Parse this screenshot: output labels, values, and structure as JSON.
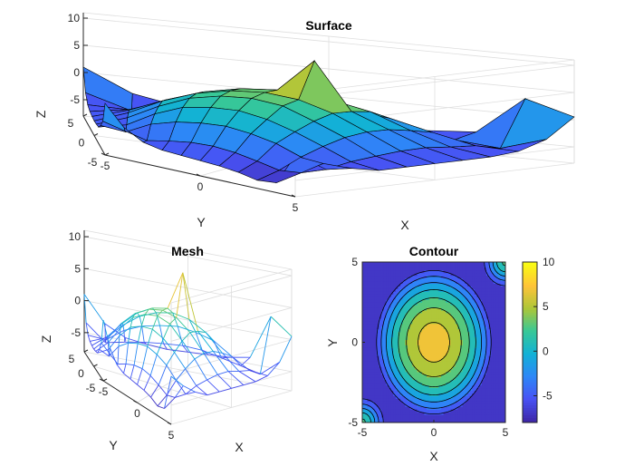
{
  "chart_data": [
    {
      "type": "surface",
      "title": "Surface",
      "xlabel": "X",
      "ylabel": "Y",
      "zlabel": "Z",
      "xlim": [
        -5,
        5
      ],
      "ylim": [
        -5,
        5
      ],
      "zlim": [
        -8,
        11
      ],
      "xticks": [
        "-5",
        "0",
        "5"
      ],
      "yticks": [
        "-5",
        "0",
        "5"
      ],
      "zticks": [
        "-5",
        "0",
        "5",
        "10"
      ],
      "colormap": "parula",
      "grid": true
    },
    {
      "type": "mesh",
      "title": "Mesh",
      "xlabel": "X",
      "ylabel": "Y",
      "zlabel": "Z",
      "xlim": [
        -5,
        5
      ],
      "ylim": [
        -5,
        5
      ],
      "zlim": [
        -8,
        11
      ],
      "xticks": [
        "-5",
        "0",
        "5"
      ],
      "yticks": [
        "-5",
        "0",
        "5"
      ],
      "zticks": [
        "-5",
        "0",
        "5",
        "10"
      ],
      "colormap": "parula",
      "grid": true
    },
    {
      "type": "contour",
      "title": "Contour",
      "xlabel": "X",
      "ylabel": "Y",
      "xlim": [
        -5,
        5
      ],
      "ylim": [
        -5,
        5
      ],
      "xticks": [
        "-5",
        "0",
        "5"
      ],
      "yticks": [
        "-5",
        "0",
        "5"
      ],
      "colorbar_ticks": [
        "-5",
        "0",
        "5",
        "10"
      ],
      "clim": [
        -8,
        10
      ],
      "colormap": "parula"
    }
  ],
  "surface_data": {
    "x": [
      -5,
      -4,
      -3,
      -2,
      -1,
      0,
      1,
      2,
      3,
      4,
      5
    ],
    "y": [
      -5,
      -4,
      -3,
      -2,
      -1,
      0,
      1,
      2,
      3,
      4,
      5
    ],
    "z": [
      [
        1.5,
        -2.2,
        -4.1,
        -4.8,
        -5.0,
        -5.2,
        -5.4,
        -5.8,
        -6.5,
        -6.2,
        -0.5
      ],
      [
        -2.5,
        -3.5,
        -4.5,
        -3.8,
        -3.3,
        -3.2,
        -3.6,
        -4.4,
        -5.3,
        -5.0,
        -2.5
      ],
      [
        -4.0,
        -4.4,
        -2.2,
        -1.0,
        -0.4,
        -0.2,
        -0.8,
        -1.8,
        -3.5,
        -5.0,
        -4.0
      ],
      [
        -5.0,
        -3.8,
        -1.0,
        1.0,
        1.8,
        2.0,
        1.2,
        -0.3,
        -2.2,
        -4.2,
        -5.0
      ],
      [
        -5.2,
        -3.2,
        -0.3,
        2.0,
        3.2,
        3.6,
        3.0,
        1.0,
        -1.2,
        -3.8,
        -5.0
      ],
      [
        -5.3,
        -3.0,
        0.0,
        2.2,
        3.5,
        4.0,
        3.5,
        1.8,
        -0.8,
        -3.5,
        -5.0
      ],
      [
        -5.2,
        -3.2,
        -0.5,
        1.8,
        3.2,
        3.8,
        10.0,
        1.5,
        -1.0,
        -3.5,
        -5.0
      ],
      [
        -5.0,
        -3.8,
        -1.2,
        0.8,
        2.0,
        2.6,
        2.2,
        0.8,
        -1.8,
        -4.0,
        -5.0
      ],
      [
        -4.5,
        -4.6,
        -2.5,
        -1.2,
        -0.5,
        0.0,
        -0.3,
        -1.0,
        -2.8,
        -4.4,
        -4.6
      ],
      [
        -3.0,
        -5.5,
        -4.8,
        -4.2,
        -3.8,
        -3.5,
        -3.6,
        -4.2,
        -4.8,
        -5.5,
        -3.0
      ],
      [
        1.0,
        -3.0,
        -4.6,
        -5.0,
        -5.2,
        -5.0,
        -4.8,
        -4.6,
        -4.0,
        3.0,
        0.5
      ]
    ]
  }
}
